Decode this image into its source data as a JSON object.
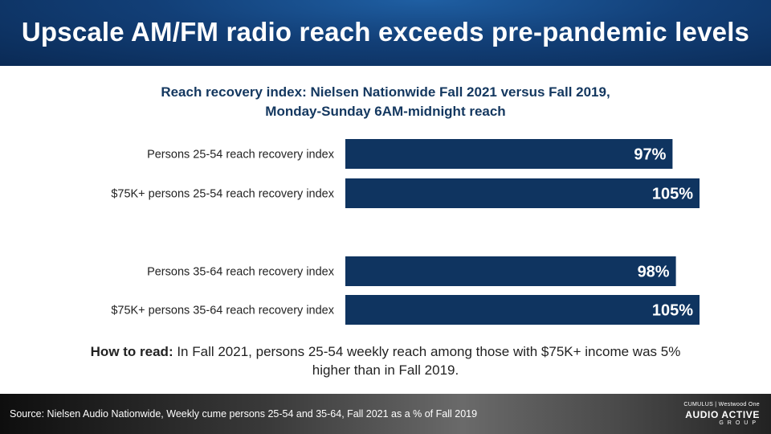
{
  "title": "Upscale AM/FM radio reach exceeds pre-pandemic levels",
  "chart_data": {
    "type": "bar",
    "orientation": "horizontal",
    "title_lines": [
      "Reach recovery index: Nielsen Nationwide Fall 2021 versus Fall 2019,",
      "Monday-Sunday 6AM-midnight reach"
    ],
    "categories": [
      "Persons 25-54 reach recovery index",
      "$75K+ persons 25-54 reach recovery index",
      "Persons 35-64 reach recovery index",
      "$75K+ persons 35-64 reach recovery index"
    ],
    "values": [
      97,
      105,
      98,
      105
    ],
    "value_labels": [
      "97%",
      "105%",
      "98%",
      "105%"
    ],
    "xlim": [
      0,
      105
    ],
    "grid": false,
    "bar_color": "#0f3460"
  },
  "how_to_read": {
    "label": "How to read:",
    "text": " In Fall 2021, persons 25-54 weekly reach among those with $75K+ income was 5% higher than in Fall 2019."
  },
  "footer": {
    "source": "Source: Nielsen Audio Nationwide, Weekly cume persons 25-54 and 35-64, Fall 2021 as a % of Fall 2019",
    "logo_top": "CUMULUS | Westwood One",
    "logo_main": "AUDIO ACTIVE",
    "logo_sub": "GROUP"
  }
}
